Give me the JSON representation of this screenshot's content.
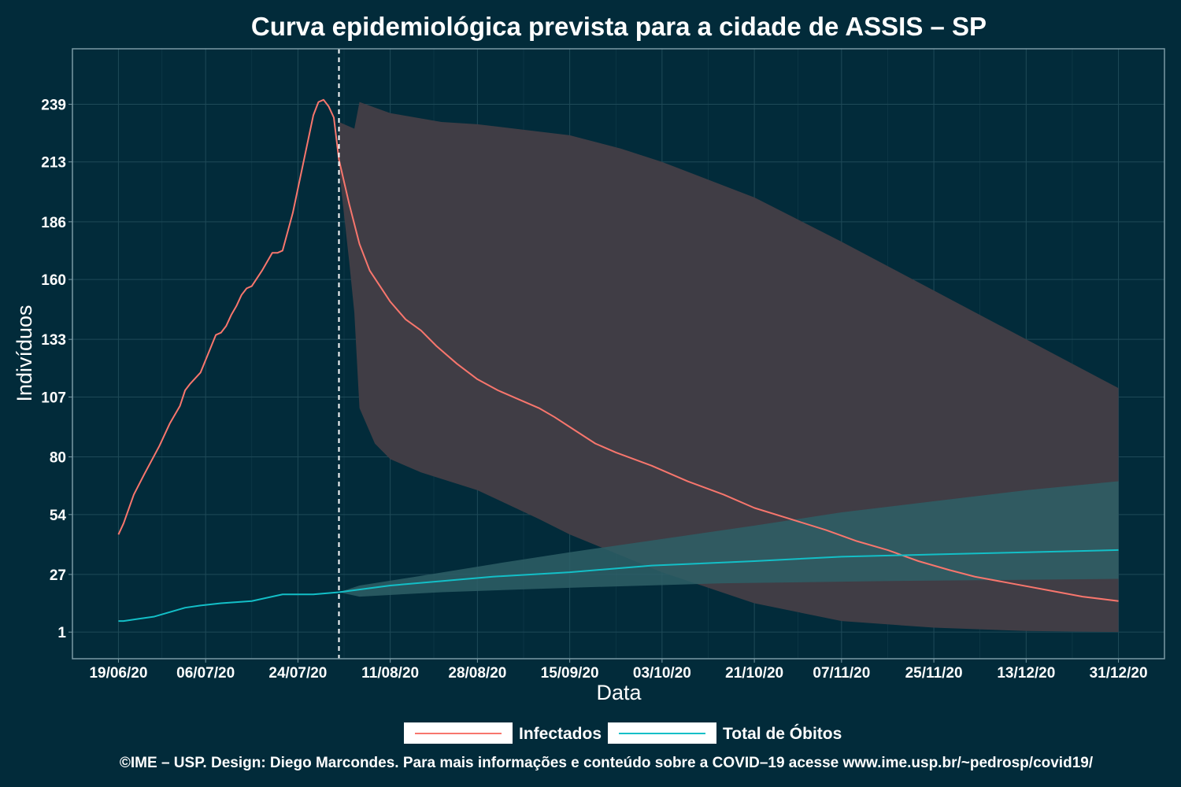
{
  "colors": {
    "background": "#022b3a",
    "infected": "#f8766d",
    "deaths": "#13bfc7",
    "infected_band": "#403d45",
    "deaths_band": "#2e5f66",
    "grid": "#1f4a58",
    "panel_border": "#7a9aa5"
  },
  "chart_data": {
    "type": "line",
    "title": "Curva epidemiológica prevista para a cidade de ASSIS – SP",
    "xlabel": "Data",
    "ylabel": "Indivíduos",
    "x_axis": {
      "start": "2020-06-19",
      "end": "2020-12-31",
      "tick_labels": [
        "19/06/20",
        "06/07/20",
        "24/07/20",
        "11/08/20",
        "28/08/20",
        "15/09/20",
        "03/10/20",
        "21/10/20",
        "07/11/20",
        "25/11/20",
        "13/12/20",
        "31/12/20"
      ],
      "tick_dates": [
        "2020-06-19",
        "2020-07-06",
        "2020-07-24",
        "2020-08-11",
        "2020-08-28",
        "2020-09-15",
        "2020-10-03",
        "2020-10-21",
        "2020-11-07",
        "2020-11-25",
        "2020-12-13",
        "2020-12-31"
      ]
    },
    "y_axis": {
      "range": [
        -11,
        264
      ],
      "tick_labels": [
        "1",
        "27",
        "54",
        "80",
        "107",
        "133",
        "160",
        "186",
        "213",
        "239"
      ],
      "tick_values": [
        1,
        27,
        54,
        80,
        107,
        133,
        160,
        186,
        213,
        239
      ]
    },
    "grid": true,
    "prediction_start": "2020-08-01",
    "legend_position": "bottom",
    "series": [
      {
        "name": "Infectados",
        "color": "#f8766d",
        "points": [
          [
            "2020-06-19",
            45
          ],
          [
            "2020-06-20",
            50
          ],
          [
            "2020-06-22",
            63
          ],
          [
            "2020-06-24",
            72
          ],
          [
            "2020-06-27",
            85
          ],
          [
            "2020-06-29",
            95
          ],
          [
            "2020-07-01",
            103
          ],
          [
            "2020-07-02",
            110
          ],
          [
            "2020-07-03",
            113
          ],
          [
            "2020-07-05",
            118
          ],
          [
            "2020-07-08",
            135
          ],
          [
            "2020-07-09",
            136
          ],
          [
            "2020-07-10",
            139
          ],
          [
            "2020-07-11",
            144
          ],
          [
            "2020-07-12",
            148
          ],
          [
            "2020-07-13",
            153
          ],
          [
            "2020-07-14",
            156
          ],
          [
            "2020-07-15",
            157
          ],
          [
            "2020-07-17",
            164
          ],
          [
            "2020-07-19",
            172
          ],
          [
            "2020-07-20",
            172
          ],
          [
            "2020-07-21",
            173
          ],
          [
            "2020-07-23",
            190
          ],
          [
            "2020-07-25",
            212
          ],
          [
            "2020-07-27",
            234
          ],
          [
            "2020-07-28",
            240
          ],
          [
            "2020-07-29",
            241
          ],
          [
            "2020-07-30",
            238
          ],
          [
            "2020-07-31",
            233
          ],
          [
            "2020-08-01",
            214
          ],
          [
            "2020-08-03",
            194
          ],
          [
            "2020-08-05",
            176
          ],
          [
            "2020-08-07",
            164
          ],
          [
            "2020-08-09",
            157
          ],
          [
            "2020-08-11",
            150
          ],
          [
            "2020-08-14",
            142
          ],
          [
            "2020-08-17",
            137
          ],
          [
            "2020-08-20",
            130
          ],
          [
            "2020-08-24",
            122
          ],
          [
            "2020-08-28",
            115
          ],
          [
            "2020-09-01",
            110
          ],
          [
            "2020-09-05",
            106
          ],
          [
            "2020-09-09",
            102
          ],
          [
            "2020-09-12",
            98
          ],
          [
            "2020-09-16",
            92
          ],
          [
            "2020-09-20",
            86
          ],
          [
            "2020-09-24",
            82
          ],
          [
            "2020-10-01",
            76
          ],
          [
            "2020-10-08",
            69
          ],
          [
            "2020-10-15",
            63
          ],
          [
            "2020-10-21",
            57
          ],
          [
            "2020-10-28",
            52
          ],
          [
            "2020-11-04",
            47
          ],
          [
            "2020-11-10",
            42
          ],
          [
            "2020-11-16",
            38
          ],
          [
            "2020-11-22",
            33
          ],
          [
            "2020-11-28",
            29
          ],
          [
            "2020-12-03",
            26
          ],
          [
            "2020-12-10",
            23
          ],
          [
            "2020-12-17",
            20
          ],
          [
            "2020-12-24",
            17
          ],
          [
            "2020-12-31",
            15
          ]
        ]
      },
      {
        "name": "Total de Óbitos",
        "color": "#13bfc7",
        "points": [
          [
            "2020-06-19",
            6
          ],
          [
            "2020-06-20",
            6
          ],
          [
            "2020-06-23",
            7
          ],
          [
            "2020-06-26",
            8
          ],
          [
            "2020-06-29",
            10
          ],
          [
            "2020-07-02",
            12
          ],
          [
            "2020-07-05",
            13
          ],
          [
            "2020-07-09",
            14
          ],
          [
            "2020-07-15",
            15
          ],
          [
            "2020-07-21",
            18
          ],
          [
            "2020-07-24",
            18
          ],
          [
            "2020-07-27",
            18
          ],
          [
            "2020-08-01",
            19
          ],
          [
            "2020-08-11",
            22
          ],
          [
            "2020-08-21",
            24
          ],
          [
            "2020-08-31",
            26
          ],
          [
            "2020-09-15",
            28
          ],
          [
            "2020-10-01",
            31
          ],
          [
            "2020-10-21",
            33
          ],
          [
            "2020-11-07",
            35
          ],
          [
            "2020-11-25",
            36
          ],
          [
            "2020-12-13",
            37
          ],
          [
            "2020-12-31",
            38
          ]
        ]
      }
    ],
    "bands": [
      {
        "series": "Infectados",
        "upper": [
          [
            "2020-08-01",
            231
          ],
          [
            "2020-08-04",
            228
          ],
          [
            "2020-08-05",
            240
          ],
          [
            "2020-08-11",
            235
          ],
          [
            "2020-08-21",
            231
          ],
          [
            "2020-08-28",
            230
          ],
          [
            "2020-09-15",
            225
          ],
          [
            "2020-09-25",
            219
          ],
          [
            "2020-10-03",
            213
          ],
          [
            "2020-10-21",
            197
          ],
          [
            "2020-11-07",
            177
          ],
          [
            "2020-11-25",
            155
          ],
          [
            "2020-12-13",
            133
          ],
          [
            "2020-12-31",
            111
          ]
        ],
        "lower": [
          [
            "2020-08-01",
            210
          ],
          [
            "2020-08-03",
            168
          ],
          [
            "2020-08-04",
            145
          ],
          [
            "2020-08-05",
            102
          ],
          [
            "2020-08-08",
            86
          ],
          [
            "2020-08-11",
            79
          ],
          [
            "2020-08-17",
            73
          ],
          [
            "2020-08-28",
            65
          ],
          [
            "2020-09-09",
            52
          ],
          [
            "2020-09-15",
            45
          ],
          [
            "2020-10-03",
            28
          ],
          [
            "2020-10-21",
            14
          ],
          [
            "2020-11-07",
            6
          ],
          [
            "2020-11-25",
            3
          ],
          [
            "2020-12-13",
            1.5
          ],
          [
            "2020-12-31",
            1
          ]
        ]
      },
      {
        "series": "Total de Óbitos",
        "upper": [
          [
            "2020-08-01",
            19
          ],
          [
            "2020-08-05",
            22
          ],
          [
            "2020-08-16",
            26
          ],
          [
            "2020-09-01",
            32
          ],
          [
            "2020-09-15",
            37
          ],
          [
            "2020-10-03",
            43
          ],
          [
            "2020-10-21",
            49
          ],
          [
            "2020-11-07",
            55
          ],
          [
            "2020-11-25",
            60
          ],
          [
            "2020-12-13",
            65
          ],
          [
            "2020-12-31",
            69
          ]
        ],
        "lower": [
          [
            "2020-08-01",
            19
          ],
          [
            "2020-08-05",
            17
          ],
          [
            "2020-08-21",
            19
          ],
          [
            "2020-09-15",
            21
          ],
          [
            "2020-10-15",
            23
          ],
          [
            "2020-11-15",
            24
          ],
          [
            "2020-12-31",
            25
          ]
        ]
      }
    ]
  },
  "legend": {
    "items": [
      {
        "label": "Infectados",
        "color": "#f8766d"
      },
      {
        "label": "Total de Óbitos",
        "color": "#13bfc7"
      }
    ]
  },
  "caption": "©IME – USP. Design: Diego Marcondes. Para mais informações e conteúdo sobre a COVID–19 acesse www.ime.usp.br/~pedrosp/covid19/"
}
